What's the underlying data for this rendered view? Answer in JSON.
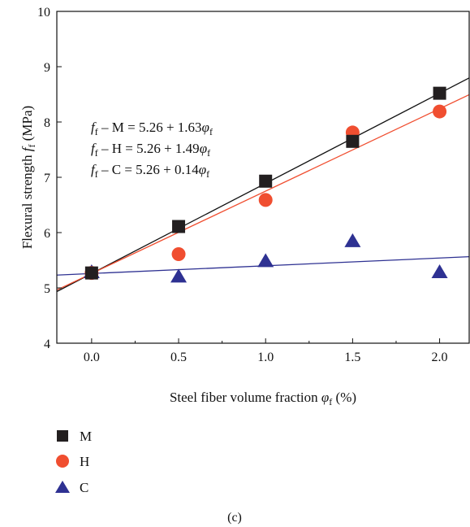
{
  "chart_data": {
    "type": "scatter",
    "panel_label": "(c)",
    "xlabel": {
      "prefix": "Steel fiber volume fraction ",
      "symbol": "φ",
      "sub": "f",
      "suffix": " (%)"
    },
    "ylabel": {
      "prefix": "Flexural strength ",
      "symbol": "f",
      "sub": "f",
      "suffix": " (MPa)"
    },
    "xlim": [
      -0.2,
      2.17
    ],
    "ylim": [
      4,
      10
    ],
    "xticks": [
      0.0,
      0.5,
      1.0,
      1.5,
      2.0
    ],
    "xtick_labels": [
      "0.0",
      "0.5",
      "1.0",
      "1.5",
      "2.0"
    ],
    "yticks": [
      4,
      5,
      6,
      7,
      8,
      9,
      10
    ],
    "ytick_labels": [
      "4",
      "5",
      "6",
      "7",
      "8",
      "9",
      "10"
    ],
    "grid": false,
    "legend_position": "bottom-left, below plot",
    "series": [
      {
        "name": "M",
        "marker": "square",
        "color": "#231f20",
        "x": [
          0.0,
          0.5,
          1.0,
          1.5,
          2.0
        ],
        "y": [
          5.27,
          6.11,
          6.93,
          7.65,
          8.52
        ],
        "fit": {
          "intercept": 5.26,
          "slope": 1.63,
          "color": "#111111"
        },
        "equation": {
          "lhs_sym": "f",
          "lhs_sub": "f",
          "lhs_rest": " – M = 5.26 + 1.63",
          "rhs_sym": "φ",
          "rhs_sub": "f"
        }
      },
      {
        "name": "H",
        "marker": "circle",
        "color": "#f04e30",
        "x": [
          0.0,
          0.5,
          1.0,
          1.5,
          2.0
        ],
        "y": [
          5.27,
          5.61,
          6.59,
          7.81,
          8.19
        ],
        "fit": {
          "intercept": 5.26,
          "slope": 1.49,
          "color": "#f04e30"
        },
        "equation": {
          "lhs_sym": "f",
          "lhs_sub": "f",
          "lhs_rest": " – H = 5.26 + 1.49",
          "rhs_sym": "φ",
          "rhs_sub": "f"
        }
      },
      {
        "name": "C",
        "marker": "triangle",
        "color": "#2e3192",
        "x": [
          0.0,
          0.5,
          1.0,
          1.5,
          2.0
        ],
        "y": [
          5.28,
          5.2,
          5.48,
          5.84,
          5.28
        ],
        "fit": {
          "intercept": 5.26,
          "slope": 0.14,
          "color": "#2e3192"
        },
        "equation": {
          "lhs_sym": "f",
          "lhs_sub": "f",
          "lhs_rest": " – C = 5.26 + 0.14",
          "rhs_sym": "φ",
          "rhs_sub": "f"
        }
      }
    ]
  }
}
